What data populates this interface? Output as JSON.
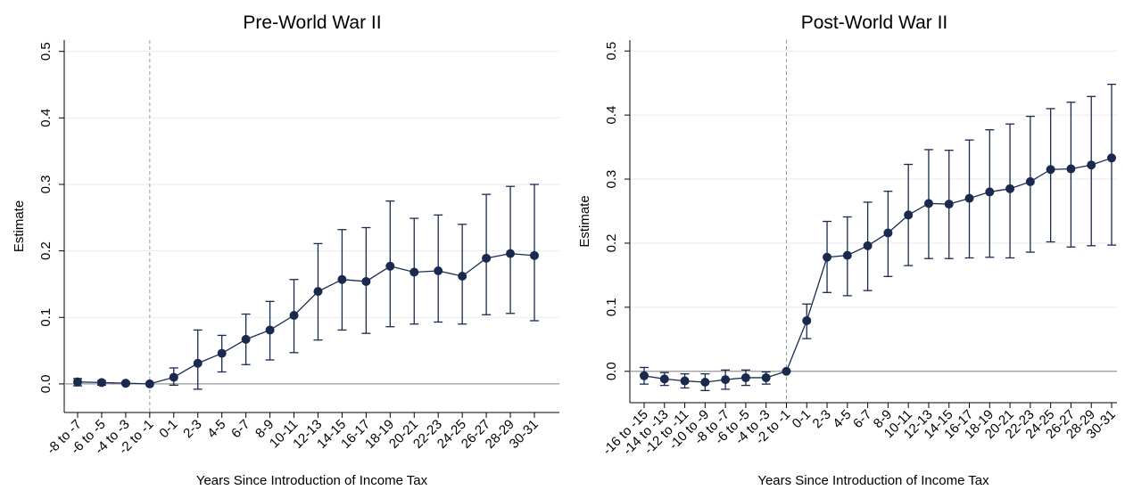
{
  "chart_data": [
    {
      "type": "line",
      "title": "Pre-World War II",
      "xlabel": "Years Since Introduction of Income Tax",
      "ylabel": "Estimate",
      "categories": [
        "-8 to -7",
        "-6 to -5",
        "-4 to -3",
        "-2 to -1",
        "0-1",
        "2-3",
        "4-5",
        "6-7",
        "8-9",
        "10-11",
        "12-13",
        "14-15",
        "16-17",
        "18-19",
        "20-21",
        "22-23",
        "24-25",
        "26-27",
        "28-29",
        "30-31"
      ],
      "series": [
        {
          "name": "Estimate",
          "color": "#1a2a4f",
          "values": [
            0.003,
            0.002,
            0.001,
            0,
            0.01,
            0.031,
            0.046,
            0.067,
            0.081,
            0.103,
            0.139,
            0.157,
            0.154,
            0.177,
            0.168,
            0.17,
            0.162,
            0.189,
            0.196,
            0.193
          ],
          "ci_low": [
            -0.003,
            -0.002,
            -0.001,
            null,
            -0.002,
            -0.008,
            0.018,
            0.029,
            0.036,
            0.047,
            0.066,
            0.081,
            0.076,
            0.086,
            0.09,
            0.093,
            0.09,
            0.104,
            0.106,
            0.095
          ],
          "ci_high": [
            0.008,
            0.005,
            0.003,
            null,
            0.024,
            0.081,
            0.073,
            0.105,
            0.124,
            0.157,
            0.211,
            0.232,
            0.235,
            0.275,
            0.249,
            0.254,
            0.24,
            0.285,
            0.297,
            0.3
          ]
        }
      ],
      "ylim": [
        -0.043,
        0.517
      ],
      "yticks": [
        {
          "value": 0,
          "label": "0.0"
        },
        0.1,
        0.2,
        0.3,
        0.4,
        0.5
      ],
      "grid": true,
      "hline": 0,
      "vline_at": "-2 to -1"
    },
    {
      "type": "line",
      "title": "Post-World War II",
      "xlabel": "Years Since Introduction of Income Tax",
      "ylabel": "Estimate",
      "categories": [
        "-16 to -15",
        "-14 to -13",
        "-12 to -11",
        "-10 to -9",
        "-8 to -7",
        "-6 to -5",
        "-4 to -3",
        "-2 to -1",
        "0-1",
        "2-3",
        "4-5",
        "6-7",
        "8-9",
        "10-11",
        "12-13",
        "14-15",
        "16-17",
        "18-19",
        "20-21",
        "22-23",
        "24-25",
        "26-27",
        "28-29",
        "30-31"
      ],
      "series": [
        {
          "name": "Estimate",
          "color": "#1a2a4f",
          "values": [
            -0.007,
            -0.012,
            -0.015,
            -0.017,
            -0.013,
            -0.01,
            -0.01,
            0,
            0.079,
            0.178,
            0.181,
            0.196,
            0.216,
            0.244,
            0.262,
            0.261,
            0.27,
            0.28,
            0.285,
            0.296,
            0.315,
            0.316,
            0.322,
            0.333
          ],
          "ci_low": [
            -0.02,
            -0.022,
            -0.026,
            -0.03,
            -0.028,
            -0.022,
            -0.02,
            null,
            0.051,
            0.123,
            0.118,
            0.126,
            0.148,
            0.165,
            0.176,
            0.176,
            0.177,
            0.178,
            0.177,
            0.186,
            0.202,
            0.194,
            0.196,
            0.197
          ],
          "ci_high": [
            0.006,
            -0.002,
            -0.004,
            -0.004,
            0.002,
            0.002,
            -0.001,
            null,
            0.105,
            0.234,
            0.241,
            0.264,
            0.281,
            0.323,
            0.346,
            0.345,
            0.361,
            0.377,
            0.386,
            0.398,
            0.41,
            0.42,
            0.429,
            0.448
          ]
        }
      ],
      "ylim": [
        -0.049,
        0.517
      ],
      "yticks": [
        {
          "value": 0,
          "label": "0.0"
        },
        0.1,
        0.2,
        0.3,
        0.4,
        0.5
      ],
      "grid": true,
      "hline": 0,
      "vline_at": "-2 to -1"
    }
  ]
}
